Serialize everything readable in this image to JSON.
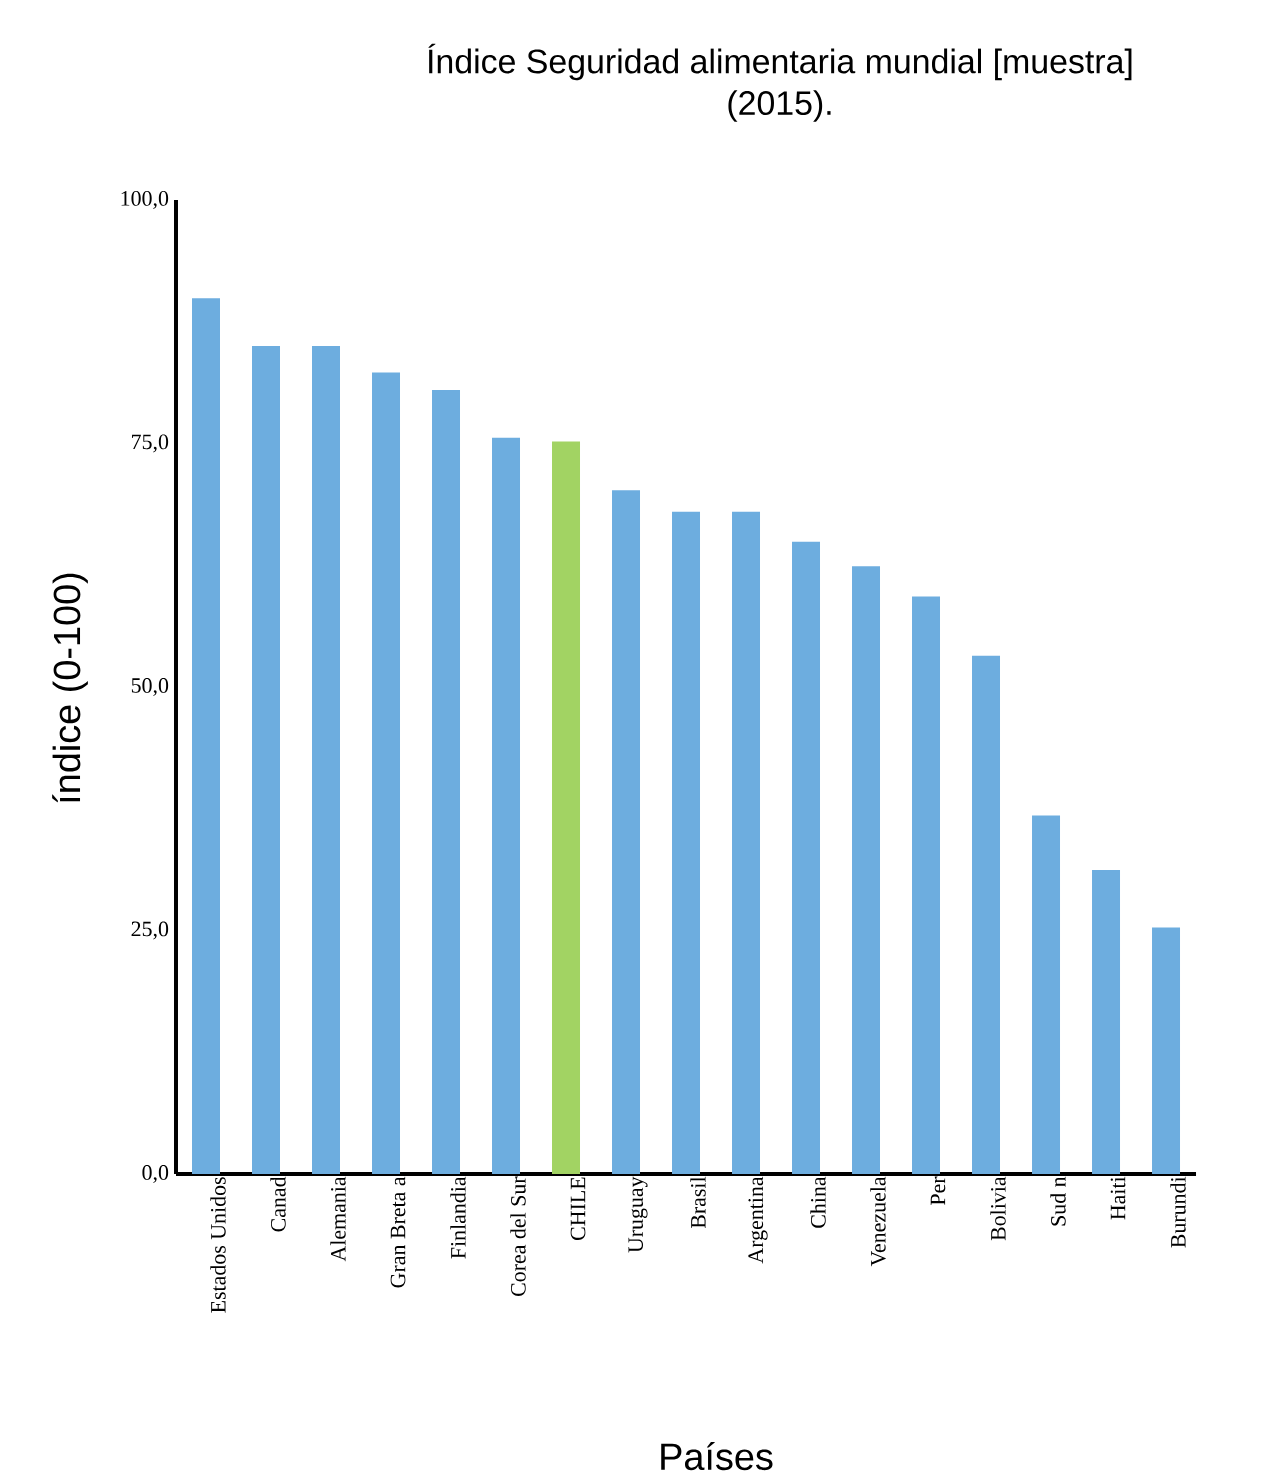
{
  "chart_data": {
    "type": "bar",
    "title": "Índice Seguridad alimentaria mundial [muestra]",
    "subtitle": "(2015).",
    "xlabel": "Países",
    "ylabel": "índice (0-100)",
    "categories": [
      "Estados Unidos",
      "Canad",
      "Alemania",
      "Gran Breta a",
      "Finlandia",
      "Corea del Sur",
      "CHILE",
      "Uruguay",
      "Brasil",
      "Argentina",
      "China",
      "Venezuela",
      "Per",
      "Bolivia",
      "Sud n",
      "Haiti",
      "Burundi"
    ],
    "values": [
      89.9,
      85.0,
      85.0,
      82.3,
      80.5,
      75.6,
      75.2,
      70.2,
      68.0,
      68.0,
      64.9,
      62.4,
      59.3,
      53.2,
      36.8,
      31.2,
      25.3
    ],
    "colors": [
      "#6daddf",
      "#6daddf",
      "#6daddf",
      "#6daddf",
      "#6daddf",
      "#6daddf",
      "#a2d363",
      "#6daddf",
      "#6daddf",
      "#6daddf",
      "#6daddf",
      "#6daddf",
      "#6daddf",
      "#6daddf",
      "#6daddf",
      "#6daddf",
      "#6daddf"
    ],
    "ylim": [
      0,
      100
    ],
    "yticks": [
      {
        "value": 0,
        "label": "0,0"
      },
      {
        "value": 25,
        "label": "25,0"
      },
      {
        "value": 50,
        "label": "50,0"
      },
      {
        "value": 75,
        "label": "75,0"
      },
      {
        "value": 100,
        "label": "100,0"
      }
    ],
    "grid": false
  }
}
